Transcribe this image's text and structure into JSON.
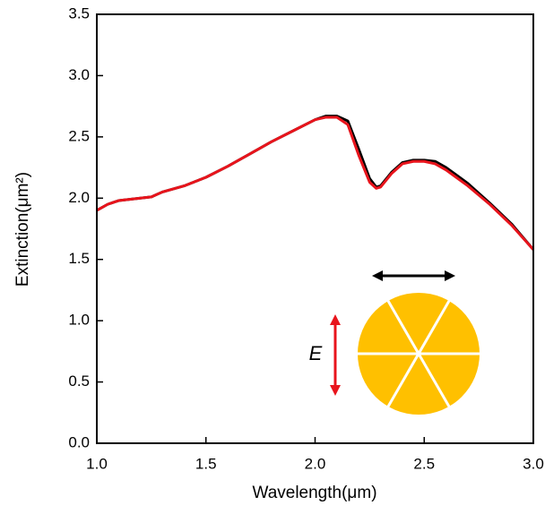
{
  "chart_data": {
    "type": "line",
    "x_label": "Wavelength(μm)",
    "y_label": "Extinction(μm²)",
    "annotations": [
      "E"
    ],
    "xlim": [
      1.0,
      3.0
    ],
    "xticks": [
      {
        "value": 1,
        "label": "1.0"
      },
      1.5,
      {
        "value": 2,
        "label": "2.0"
      },
      2.5,
      {
        "value": 3,
        "label": "3.0"
      }
    ],
    "ylim": [
      0,
      3.5
    ],
    "yticks": [
      {
        "value": 0,
        "label": "0.0"
      },
      0.5,
      {
        "value": 1,
        "label": "1.0"
      },
      1.5,
      {
        "value": 2,
        "label": "2.0"
      },
      2.5,
      {
        "value": 3,
        "label": "3.0"
      },
      3.5
    ],
    "x": [
      1.0,
      1.05,
      1.1,
      1.2,
      1.25,
      1.3,
      1.4,
      1.5,
      1.6,
      1.7,
      1.8,
      1.9,
      2.0,
      2.05,
      2.1,
      2.15,
      2.2,
      2.25,
      2.28,
      2.3,
      2.35,
      2.4,
      2.45,
      2.5,
      2.55,
      2.6,
      2.7,
      2.8,
      2.9,
      3.0
    ],
    "series": [
      {
        "color": "#000000",
        "values": [
          1.9,
          1.95,
          1.98,
          2.0,
          2.01,
          2.05,
          2.1,
          2.17,
          2.26,
          2.36,
          2.46,
          2.55,
          2.64,
          2.67,
          2.67,
          2.63,
          2.4,
          2.16,
          2.09,
          2.1,
          2.21,
          2.29,
          2.31,
          2.31,
          2.3,
          2.25,
          2.12,
          1.96,
          1.79,
          1.58
        ]
      },
      {
        "color": "#e8141c",
        "values": [
          1.9,
          1.95,
          1.98,
          2.0,
          2.01,
          2.05,
          2.1,
          2.17,
          2.26,
          2.36,
          2.46,
          2.55,
          2.64,
          2.66,
          2.66,
          2.6,
          2.35,
          2.13,
          2.08,
          2.09,
          2.2,
          2.28,
          2.3,
          2.3,
          2.28,
          2.23,
          2.1,
          1.95,
          1.78,
          1.58
        ]
      }
    ]
  }
}
